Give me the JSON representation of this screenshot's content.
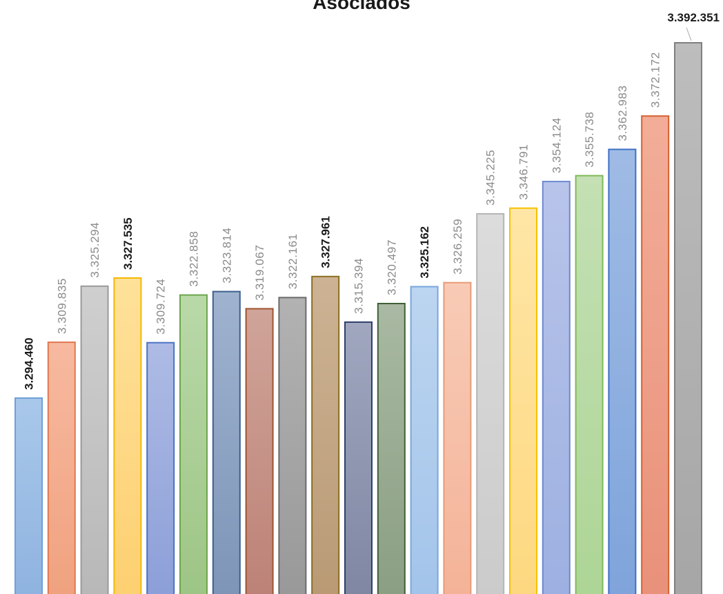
{
  "chart_data": {
    "type": "bar",
    "title": "Asociados",
    "xlabel": "",
    "ylabel": "",
    "legend": "none",
    "grid": false,
    "values": [
      3294460,
      3309835,
      3325294,
      3327535,
      3309724,
      3322858,
      3323814,
      3319067,
      3322161,
      3327961,
      3315394,
      3320497,
      3325162,
      3326259,
      3345225,
      3346791,
      3354124,
      3355738,
      3362983,
      3372172,
      3392351
    ],
    "labels": [
      "3.294.460",
      "3.309.835",
      "3.325.294",
      "3.327.535",
      "3.309.724",
      "3.322.858",
      "3.323.814",
      "3.319.067",
      "3.322.161",
      "3.327.961",
      "3.315.394",
      "3.320.497",
      "3.325.162",
      "3.326.259",
      "3.345.225",
      "3.346.791",
      "3.354.124",
      "3.355.738",
      "3.362.983",
      "3.372.172",
      "3.392.351"
    ],
    "bold": [
      true,
      false,
      false,
      true,
      false,
      false,
      false,
      false,
      false,
      true,
      false,
      false,
      true,
      false,
      false,
      false,
      false,
      false,
      false,
      false,
      true
    ],
    "fills": [
      [
        "#a9c8ea",
        "#8fb3e0",
        "#6e9fd8"
      ],
      [
        "#f7b9a0",
        "#f0a27f",
        "#e0784f"
      ],
      [
        "#cfcfcf",
        "#b8b8b8",
        "#9a9a9a"
      ],
      [
        "#ffe19a",
        "#fdd071",
        "#f5b800"
      ],
      [
        "#aebbe5",
        "#8c9fd8",
        "#4a72c4"
      ],
      [
        "#b9d9a9",
        "#9dc585",
        "#6ea54c"
      ],
      [
        "#9fb3cf",
        "#7e95b8",
        "#3c5f8f"
      ],
      [
        "#d0a499",
        "#bd8277",
        "#a0522d"
      ],
      [
        "#b2b2b2",
        "#999999",
        "#6b6b6b"
      ],
      [
        "#cdb394",
        "#b99a75",
        "#8a6d1f"
      ],
      [
        "#a0a7bf",
        "#7f87a3",
        "#2f3f6b"
      ],
      [
        "#a9b9a3",
        "#8a9f83",
        "#3f5f36"
      ],
      [
        "#bcd5f0",
        "#a3c4ea",
        "#7aa6dc"
      ],
      [
        "#f8cbb6",
        "#f4b398",
        "#e89a75"
      ],
      [
        "#dcdcdc",
        "#cbcbcb",
        "#b5b5b5"
      ],
      [
        "#ffe6a6",
        "#fdd880",
        "#f5c200"
      ],
      [
        "#b8c4ea",
        "#9db0e1",
        "#6d88cf"
      ],
      [
        "#c4e0b4",
        "#add596",
        "#7fb85a"
      ],
      [
        "#9fbbe5",
        "#7fa4db",
        "#3f6fc4"
      ],
      [
        "#f2ad98",
        "#e9917a",
        "#d6602f"
      ],
      [
        "#bdbdbd",
        "#a6a6a6",
        "#7f7f7f"
      ]
    ]
  }
}
